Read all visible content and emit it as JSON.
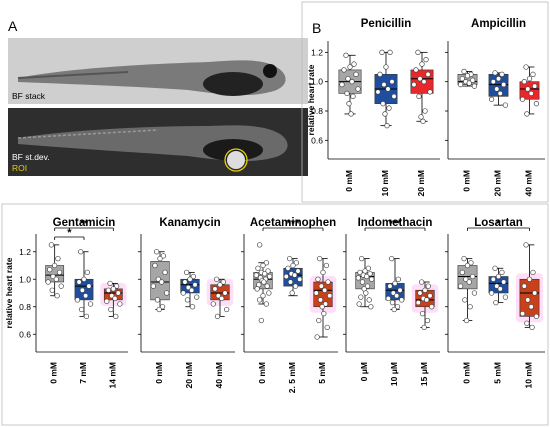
{
  "panels": {
    "a_label": "A",
    "b_label": "B"
  },
  "images": [
    {
      "caption": "BF stack"
    },
    {
      "caption": "BF st.dev.",
      "roi_label": "ROI"
    }
  ],
  "chart_data": [
    {
      "type": "box",
      "title": "Penicillin",
      "ylabel": "relative heart rate",
      "ylim": [
        0.5,
        1.25
      ],
      "yticks": [
        0.6,
        0.8,
        1.0,
        1.2
      ],
      "categories": [
        "0 mM",
        "10 mM",
        "20 mM"
      ],
      "colors": [
        "#a6a6a6",
        "#1f4e9e",
        "#e8282b"
      ],
      "boxes": [
        {
          "q1": 0.92,
          "median": 1.0,
          "q3": 1.08,
          "min": 0.78,
          "max": 1.18
        },
        {
          "q1": 0.85,
          "median": 0.95,
          "q3": 1.05,
          "min": 0.7,
          "max": 1.2
        },
        {
          "q1": 0.92,
          "median": 1.02,
          "q3": 1.08,
          "min": 0.73,
          "max": 1.2
        }
      ],
      "points": [
        [
          1.18,
          1.12,
          1.1,
          1.08,
          1.05,
          1.02,
          1.0,
          0.98,
          0.95,
          0.92,
          0.9,
          0.85,
          0.78
        ],
        [
          1.2,
          1.2,
          1.1,
          1.05,
          1.0,
          0.98,
          0.95,
          0.93,
          0.9,
          0.85,
          0.82,
          0.78,
          0.7
        ],
        [
          1.2,
          1.15,
          1.12,
          1.08,
          1.05,
          1.02,
          1.0,
          0.98,
          0.93,
          0.9,
          0.8,
          0.76,
          0.73
        ]
      ],
      "significance": []
    },
    {
      "type": "box",
      "title": "Ampicillin",
      "ylim": [
        0.5,
        1.25
      ],
      "yticks": [
        0.6,
        0.8,
        1.0,
        1.2
      ],
      "categories": [
        "0 mM",
        "20 mM",
        "40 mM"
      ],
      "colors": [
        "#a6a6a6",
        "#1f4e9e",
        "#e8282b"
      ],
      "boxes": [
        {
          "q1": 0.98,
          "median": 1.0,
          "q3": 1.05,
          "min": 0.97,
          "max": 1.07
        },
        {
          "q1": 0.9,
          "median": 0.98,
          "q3": 1.05,
          "min": 0.84,
          "max": 1.06
        },
        {
          "q1": 0.88,
          "median": 0.95,
          "q3": 1.0,
          "min": 0.78,
          "max": 1.1
        }
      ],
      "points": [
        [
          1.07,
          1.05,
          1.04,
          1.02,
          1.01,
          1.0,
          0.99,
          0.98,
          0.97
        ],
        [
          1.06,
          1.05,
          1.02,
          1.0,
          0.98,
          0.95,
          0.92,
          0.88,
          0.84
        ],
        [
          1.1,
          1.05,
          1.02,
          1.0,
          0.97,
          0.95,
          0.92,
          0.88,
          0.85,
          0.78
        ]
      ],
      "significance": []
    },
    {
      "type": "box",
      "title": "Gentamicin",
      "ylabel": "relative heart rate",
      "ylim": [
        0.5,
        1.3
      ],
      "yticks": [
        0.6,
        0.8,
        1.0,
        1.2
      ],
      "categories": [
        "0 mM",
        "7 mM",
        "14 mM"
      ],
      "colors": [
        "#a6a6a6",
        "#1f4e9e",
        "#c8411b"
      ],
      "boxes": [
        {
          "q1": 0.98,
          "median": 1.03,
          "q3": 1.1,
          "min": 0.88,
          "max": 1.25
        },
        {
          "q1": 0.85,
          "median": 0.95,
          "q3": 1.0,
          "min": 0.73,
          "max": 1.2
        },
        {
          "q1": 0.85,
          "median": 0.9,
          "q3": 0.93,
          "min": 0.73,
          "max": 0.97
        }
      ],
      "points": [
        [
          1.25,
          1.15,
          1.1,
          1.07,
          1.05,
          1.02,
          1.0,
          0.98,
          0.95,
          0.92,
          0.88
        ],
        [
          1.2,
          1.05,
          1.0,
          0.98,
          0.95,
          0.92,
          0.88,
          0.85,
          0.82,
          0.78,
          0.73
        ],
        [
          0.97,
          0.95,
          0.93,
          0.92,
          0.9,
          0.88,
          0.86,
          0.84,
          0.82,
          0.78,
          0.73
        ]
      ],
      "significance": [
        {
          "from": 0,
          "to": 2,
          "label": "**"
        },
        {
          "from": 0,
          "to": 1,
          "label": "*"
        }
      ]
    },
    {
      "type": "box",
      "title": "Kanamycin",
      "ylim": [
        0.5,
        1.3
      ],
      "yticks": [
        0.6,
        0.8,
        1.0,
        1.2
      ],
      "categories": [
        "0 mM",
        "20 mM",
        "40 mM"
      ],
      "colors": [
        "#a6a6a6",
        "#1f4e9e",
        "#c8411b"
      ],
      "boxes": [
        {
          "q1": 0.85,
          "median": 0.98,
          "q3": 1.13,
          "min": 0.78,
          "max": 1.2
        },
        {
          "q1": 0.9,
          "median": 0.96,
          "q3": 1.0,
          "min": 0.8,
          "max": 1.05
        },
        {
          "q1": 0.85,
          "median": 0.9,
          "q3": 0.96,
          "min": 0.73,
          "max": 1.0
        }
      ],
      "points": [
        [
          1.2,
          1.17,
          1.15,
          1.1,
          1.05,
          1.0,
          0.98,
          0.95,
          0.9,
          0.85,
          0.8,
          0.78
        ],
        [
          1.05,
          1.02,
          1.0,
          0.98,
          0.96,
          0.94,
          0.92,
          0.9,
          0.87,
          0.85,
          0.8
        ],
        [
          1.0,
          0.98,
          0.96,
          0.93,
          0.9,
          0.88,
          0.86,
          0.82,
          0.78,
          0.73
        ]
      ],
      "significance": []
    },
    {
      "type": "box",
      "title": "Acetaminophen",
      "ylim": [
        0.5,
        1.3
      ],
      "yticks": [
        0.6,
        0.8,
        1.0,
        1.2
      ],
      "categories": [
        "0 mM",
        "2. 5 mM",
        "5 mM"
      ],
      "colors": [
        "#a6a6a6",
        "#1f4e9e",
        "#c8411b"
      ],
      "boxes": [
        {
          "q1": 0.93,
          "median": 1.0,
          "q3": 1.05,
          "min": 0.82,
          "max": 1.12
        },
        {
          "q1": 0.95,
          "median": 1.03,
          "q3": 1.08,
          "min": 0.88,
          "max": 1.15
        },
        {
          "q1": 0.8,
          "median": 0.92,
          "q3": 0.98,
          "min": 0.58,
          "max": 1.15
        }
      ],
      "points": [
        [
          1.25,
          1.12,
          1.1,
          1.08,
          1.06,
          1.05,
          1.04,
          1.03,
          1.02,
          1.01,
          1.0,
          0.99,
          0.98,
          0.96,
          0.95,
          0.93,
          0.9,
          0.88,
          0.85,
          0.82,
          0.7
        ],
        [
          1.15,
          1.12,
          1.1,
          1.08,
          1.06,
          1.04,
          1.03,
          1.02,
          1.0,
          0.98,
          0.95,
          0.9
        ],
        [
          1.15,
          1.1,
          1.05,
          1.0,
          0.98,
          0.95,
          0.92,
          0.9,
          0.88,
          0.85,
          0.82,
          0.8,
          0.75,
          0.7,
          0.65,
          0.58
        ]
      ],
      "significance": [
        {
          "from": 0,
          "to": 2,
          "label": "***"
        }
      ]
    },
    {
      "type": "box",
      "title": "Indomethacin",
      "ylim": [
        0.5,
        1.3
      ],
      "yticks": [
        0.6,
        0.8,
        1.0,
        1.2
      ],
      "categories": [
        "0 μM",
        "10 μM",
        "15 μM"
      ],
      "colors": [
        "#a6a6a6",
        "#1f4e9e",
        "#c8411b"
      ],
      "boxes": [
        {
          "q1": 0.93,
          "median": 1.02,
          "q3": 1.05,
          "min": 0.8,
          "max": 1.15
        },
        {
          "q1": 0.85,
          "median": 0.92,
          "q3": 0.97,
          "min": 0.78,
          "max": 1.15
        },
        {
          "q1": 0.8,
          "median": 0.85,
          "q3": 0.92,
          "min": 0.65,
          "max": 0.98
        }
      ],
      "points": [
        [
          1.15,
          1.08,
          1.06,
          1.05,
          1.04,
          1.03,
          1.02,
          1.01,
          1.0,
          0.98,
          0.95,
          0.93,
          0.9,
          0.87,
          0.85,
          0.82,
          0.8
        ],
        [
          1.15,
          1.0,
          0.97,
          0.95,
          0.92,
          0.9,
          0.88,
          0.86,
          0.85,
          0.83,
          0.8,
          0.78
        ],
        [
          0.98,
          0.95,
          0.92,
          0.9,
          0.88,
          0.86,
          0.85,
          0.83,
          0.8,
          0.75,
          0.7,
          0.65
        ]
      ],
      "significance": [
        {
          "from": 0,
          "to": 2,
          "label": "***"
        }
      ]
    },
    {
      "type": "box",
      "title": "Losartan",
      "ylim": [
        0.5,
        1.3
      ],
      "yticks": [
        0.6,
        0.8,
        1.0,
        1.2
      ],
      "categories": [
        "0 mM",
        "5 mM",
        "10 mM"
      ],
      "colors": [
        "#a6a6a6",
        "#1f4e9e",
        "#c8411b"
      ],
      "boxes": [
        {
          "q1": 0.93,
          "median": 1.02,
          "q3": 1.1,
          "min": 0.7,
          "max": 1.15
        },
        {
          "q1": 0.9,
          "median": 0.97,
          "q3": 1.02,
          "min": 0.83,
          "max": 1.08
        },
        {
          "q1": 0.73,
          "median": 0.9,
          "q3": 1.0,
          "min": 0.65,
          "max": 1.25
        }
      ],
      "points": [
        [
          1.15,
          1.12,
          1.1,
          1.05,
          1.02,
          1.0,
          0.98,
          0.95,
          0.9,
          0.85,
          0.8,
          0.7
        ],
        [
          1.08,
          1.05,
          1.02,
          1.0,
          0.98,
          0.95,
          0.93,
          0.9,
          0.87,
          0.83
        ],
        [
          1.25,
          1.05,
          1.0,
          0.95,
          0.9,
          0.85,
          0.8,
          0.75,
          0.73,
          0.68,
          0.65
        ]
      ],
      "significance": [
        {
          "from": 0,
          "to": 2,
          "label": "*"
        }
      ]
    }
  ]
}
